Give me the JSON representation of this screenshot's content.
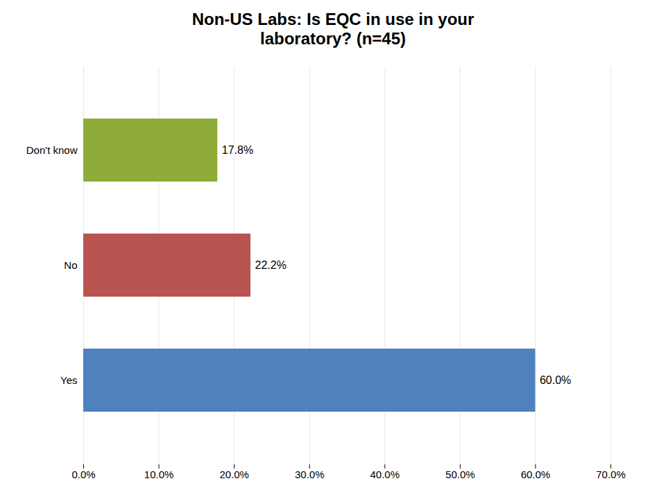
{
  "chart_data": {
    "type": "bar",
    "orientation": "horizontal",
    "title": "Non-US Labs: Is EQC in use in your\nlaboratory? (n=45)",
    "categories": [
      "Yes",
      "No",
      "Don't know"
    ],
    "values": [
      60.0,
      22.2,
      17.8
    ],
    "value_labels": [
      "60.0%",
      "22.2%",
      "17.8%"
    ],
    "data_labels": true,
    "colors": [
      "#4e81bd",
      "#b85450",
      "#8fac3a"
    ],
    "xlim": [
      0,
      70
    ],
    "xticks": [
      {
        "value": 0,
        "label": "0.0%"
      },
      {
        "value": 10,
        "label": "10.0%"
      },
      {
        "value": 20,
        "label": "20.0%"
      },
      {
        "value": 30,
        "label": "30.0%"
      },
      {
        "value": 40,
        "label": "40.0%"
      },
      {
        "value": 50,
        "label": "50.0%"
      },
      {
        "value": 60,
        "label": "60.0%"
      },
      {
        "value": 70,
        "label": "70.0%"
      }
    ],
    "grid": true
  }
}
